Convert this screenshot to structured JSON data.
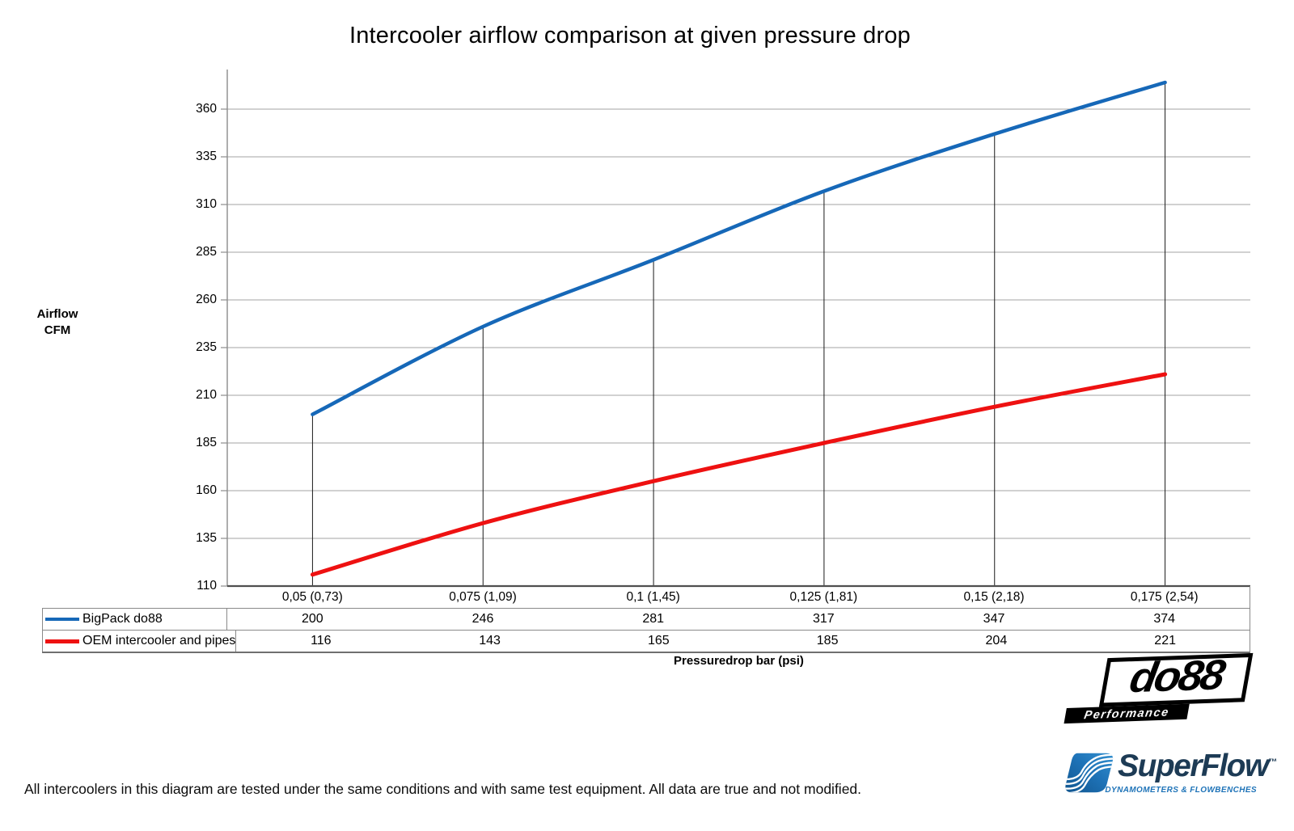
{
  "chart": {
    "title": "Intercooler airflow comparison at given pressure drop",
    "y_axis_title_line1": "Airflow",
    "y_axis_title_line2": "CFM",
    "x_axis_title": "Pressuredrop bar (psi)"
  },
  "chart_data": {
    "type": "line",
    "title": "Intercooler airflow comparison at given pressure drop",
    "xlabel": "Pressuredrop bar (psi)",
    "ylabel": "Airflow CFM",
    "categories": [
      "0,05 (0,73)",
      "0,075 (1,09)",
      "0,1 (1,45)",
      "0,125 (1,81)",
      "0,15 (2,18)",
      "0,175 (2,54)"
    ],
    "series": [
      {
        "name": "BigPack do88",
        "color": "#1668b8",
        "values": [
          200,
          246,
          281,
          317,
          347,
          374
        ]
      },
      {
        "name": "OEM intercooler and pipes",
        "color": "#ee1111",
        "values": [
          116,
          143,
          165,
          185,
          204,
          221
        ]
      }
    ],
    "yticks": [
      110,
      135,
      160,
      185,
      210,
      235,
      260,
      285,
      310,
      335,
      360
    ],
    "ylim": [
      110,
      385
    ],
    "grid": true,
    "legend_position": "table-left",
    "colors": {
      "gridline": "#a3a3a3",
      "axis": "#8c8c8c",
      "baseline": "#4f4f4f",
      "dropline": "#1a1a1a"
    }
  },
  "logos": {
    "do88": {
      "name": "do88",
      "tagline": "Performance"
    },
    "superflow": {
      "name": "SuperFlow",
      "trademark": "™",
      "tagline": "DYNAMOMETERS & FLOWBENCHES"
    }
  },
  "footer": {
    "note": "All intercoolers in this diagram are tested under the same conditions and with same test equipment. All data are true and not modified."
  }
}
